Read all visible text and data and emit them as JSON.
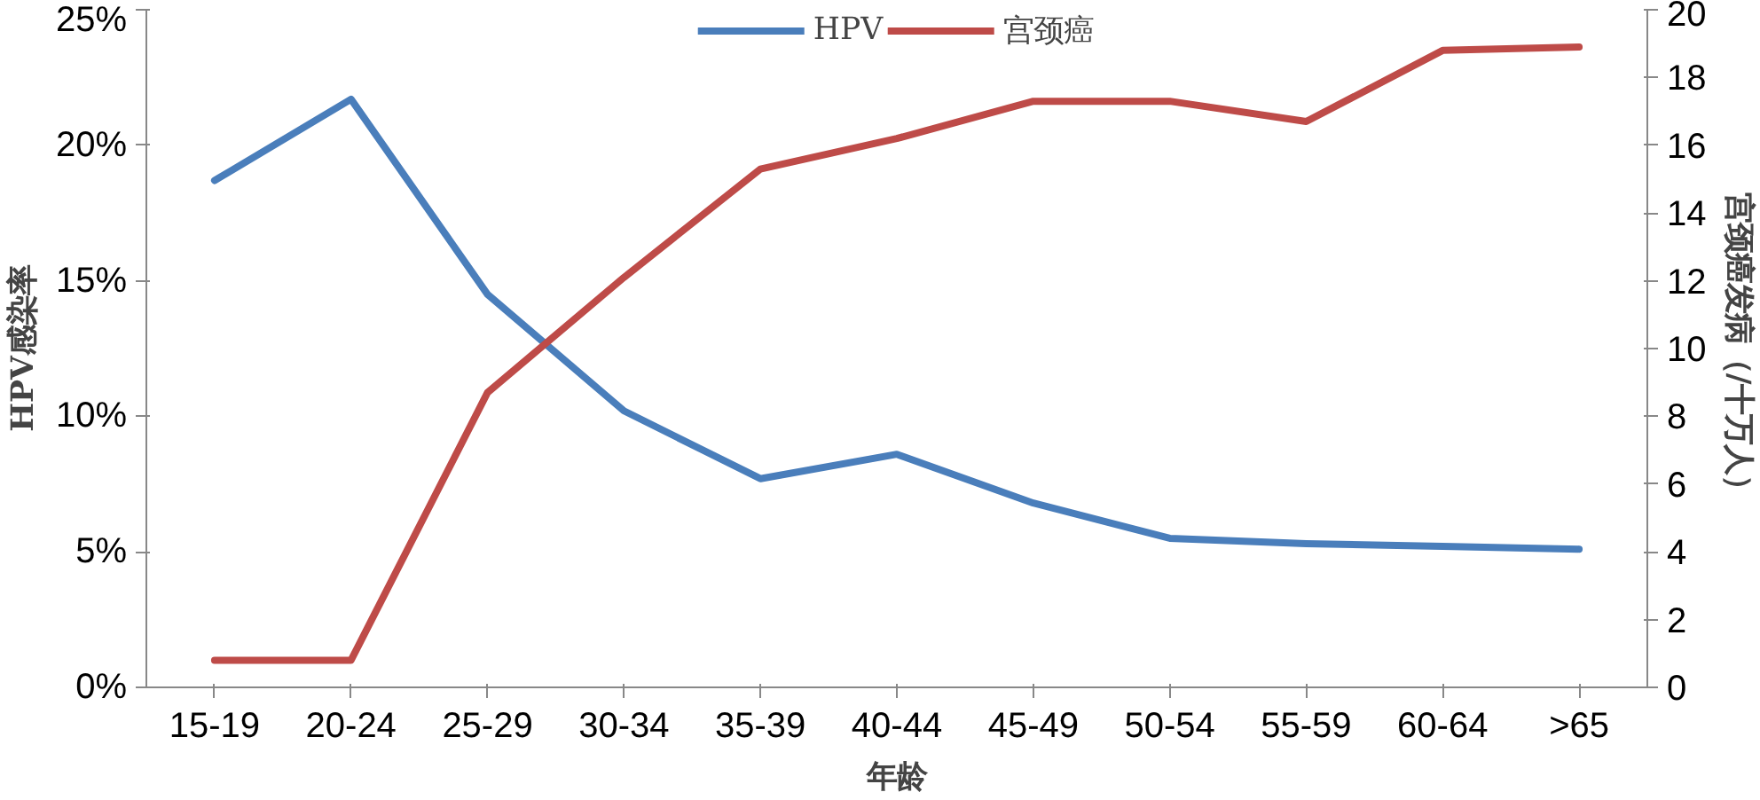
{
  "chart_data": {
    "type": "line",
    "xlabel": "年龄",
    "ylabel": "HPV感染率",
    "y2label": "宫颈癌发病（/十万人）",
    "categories": [
      "15-19",
      "20-24",
      "25-29",
      "30-34",
      "35-39",
      "40-44",
      "45-49",
      "50-54",
      "55-59",
      "60-64",
      ">65"
    ],
    "series": [
      {
        "name": "HPV",
        "color": "#4a7ebb",
        "values": [
          0.187,
          0.217,
          0.145,
          0.102,
          0.077,
          0.086,
          0.068,
          0.055,
          0.053,
          0.052,
          0.051
        ]
      },
      {
        "name": "宫颈癌",
        "color": "#be4b48",
        "axis": "y2",
        "values": [
          0.8,
          0.8,
          8.7,
          12.1,
          15.3,
          16.2,
          17.3,
          17.3,
          16.7,
          18.8,
          18.9
        ]
      }
    ],
    "ylim": [
      0,
      0.25
    ],
    "yticks": [
      {
        "value": 0,
        "label": "0%"
      },
      {
        "value": 0.05,
        "label": "5%"
      },
      {
        "value": 0.1,
        "label": "10%"
      },
      {
        "value": 0.15,
        "label": "15%"
      },
      {
        "value": 0.2,
        "label": "20%"
      },
      {
        "value": 0.25,
        "label": "25%"
      }
    ],
    "y2lim": [
      0,
      20
    ],
    "y2ticks": [
      0,
      2,
      4,
      6,
      8,
      10,
      12,
      14,
      16,
      18,
      20
    ],
    "grid": false,
    "legend": "top",
    "marker": "none",
    "line_style": "solid"
  }
}
